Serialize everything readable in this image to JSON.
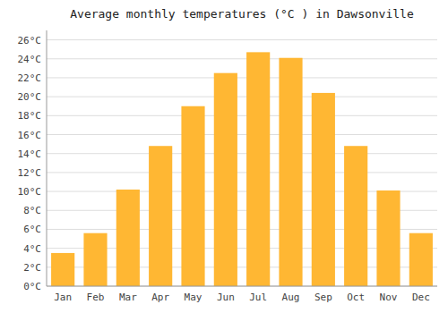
{
  "chart_data": {
    "type": "bar",
    "title": "Average monthly temperatures (°C ) in Dawsonville",
    "categories": [
      "Jan",
      "Feb",
      "Mar",
      "Apr",
      "May",
      "Jun",
      "Jul",
      "Aug",
      "Sep",
      "Oct",
      "Nov",
      "Dec"
    ],
    "values": [
      3.5,
      5.6,
      10.2,
      14.8,
      19.0,
      22.5,
      24.7,
      24.1,
      20.4,
      14.8,
      10.1,
      5.6
    ],
    "color": "#FFB733",
    "ylim": [
      0,
      27
    ],
    "yticks": [
      {
        "value": 0,
        "label": "0°C"
      },
      {
        "value": 2,
        "label": "2°C"
      },
      {
        "value": 4,
        "label": "4°C"
      },
      {
        "value": 6,
        "label": "6°C"
      },
      {
        "value": 8,
        "label": "8°C"
      },
      {
        "value": 10,
        "label": "10°C"
      },
      {
        "value": 12,
        "label": "12°C"
      },
      {
        "value": 14,
        "label": "14°C"
      },
      {
        "value": 16,
        "label": "16°C"
      },
      {
        "value": 18,
        "label": "18°C"
      },
      {
        "value": 20,
        "label": "20°C"
      },
      {
        "value": 22,
        "label": "22°C"
      },
      {
        "value": 24,
        "label": "24°C"
      },
      {
        "value": 26,
        "label": "26°C"
      }
    ],
    "grid": true
  }
}
